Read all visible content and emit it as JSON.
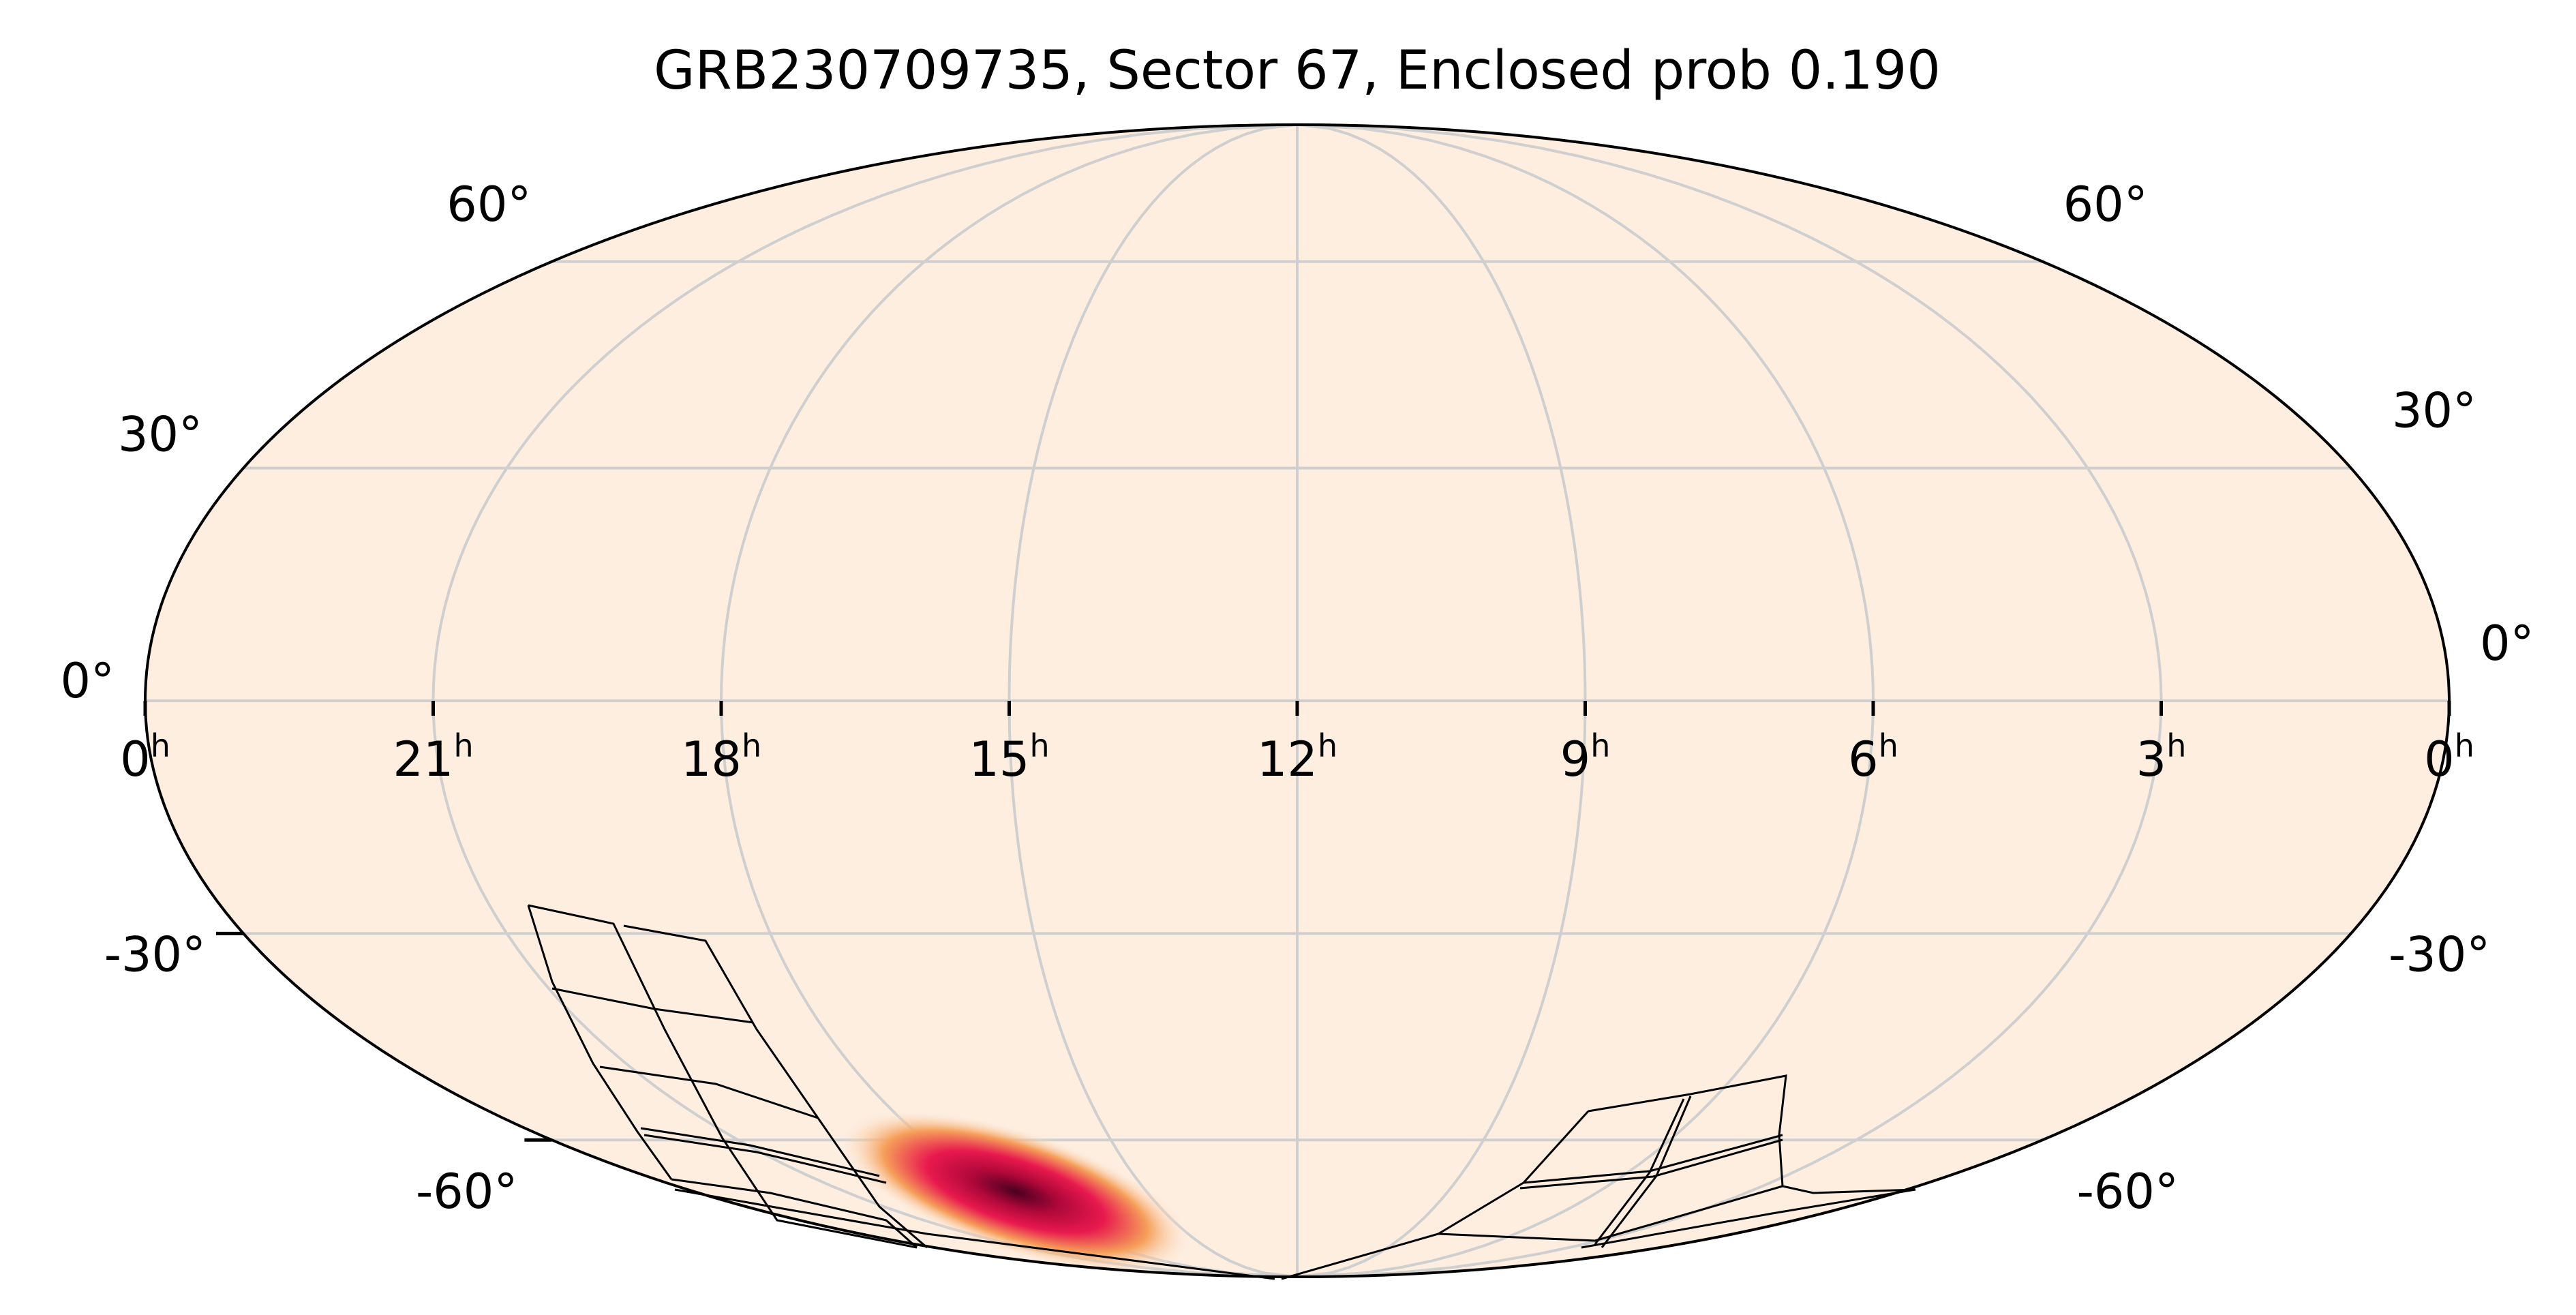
{
  "title": "GRB230709735, Sector 67, Enclosed prob 0.190",
  "projection": "mollweide",
  "ra_labels": [
    {
      "ra_hours": 24,
      "text": "0",
      "sup": "h"
    },
    {
      "ra_hours": 21,
      "text": "21",
      "sup": "h"
    },
    {
      "ra_hours": 18,
      "text": "18",
      "sup": "h"
    },
    {
      "ra_hours": 15,
      "text": "15",
      "sup": "h"
    },
    {
      "ra_hours": 12,
      "text": "12",
      "sup": "h"
    },
    {
      "ra_hours": 9,
      "text": "9",
      "sup": "h"
    },
    {
      "ra_hours": 6,
      "text": "6",
      "sup": "h"
    },
    {
      "ra_hours": 3,
      "text": "3",
      "sup": "h"
    },
    {
      "ra_hours": 0,
      "text": "0",
      "sup": "h"
    }
  ],
  "dec_labels_left": [
    {
      "dec": 60,
      "text": "60°"
    },
    {
      "dec": 30,
      "text": "30°"
    },
    {
      "dec": 0,
      "text": "0°"
    },
    {
      "dec": -30,
      "text": "-30°"
    },
    {
      "dec": -60,
      "text": "-60°"
    }
  ],
  "dec_labels_right": [
    {
      "dec": 60,
      "text": "60°"
    },
    {
      "dec": 30,
      "text": "30°"
    },
    {
      "dec": 0,
      "text": "0°"
    },
    {
      "dec": -30,
      "text": "-30°"
    },
    {
      "dec": -60,
      "text": "-60°"
    }
  ],
  "colors": {
    "map_background": "#fdeee0",
    "graticule": "#cfcfcf",
    "outline": "#000000",
    "footprint": "#000000",
    "prob_low": "#f5a05a",
    "prob_mid": "#e8194e",
    "prob_high": "#4a0020"
  },
  "probability_peak": {
    "ra_hours": 14.3,
    "dec": -62
  }
}
